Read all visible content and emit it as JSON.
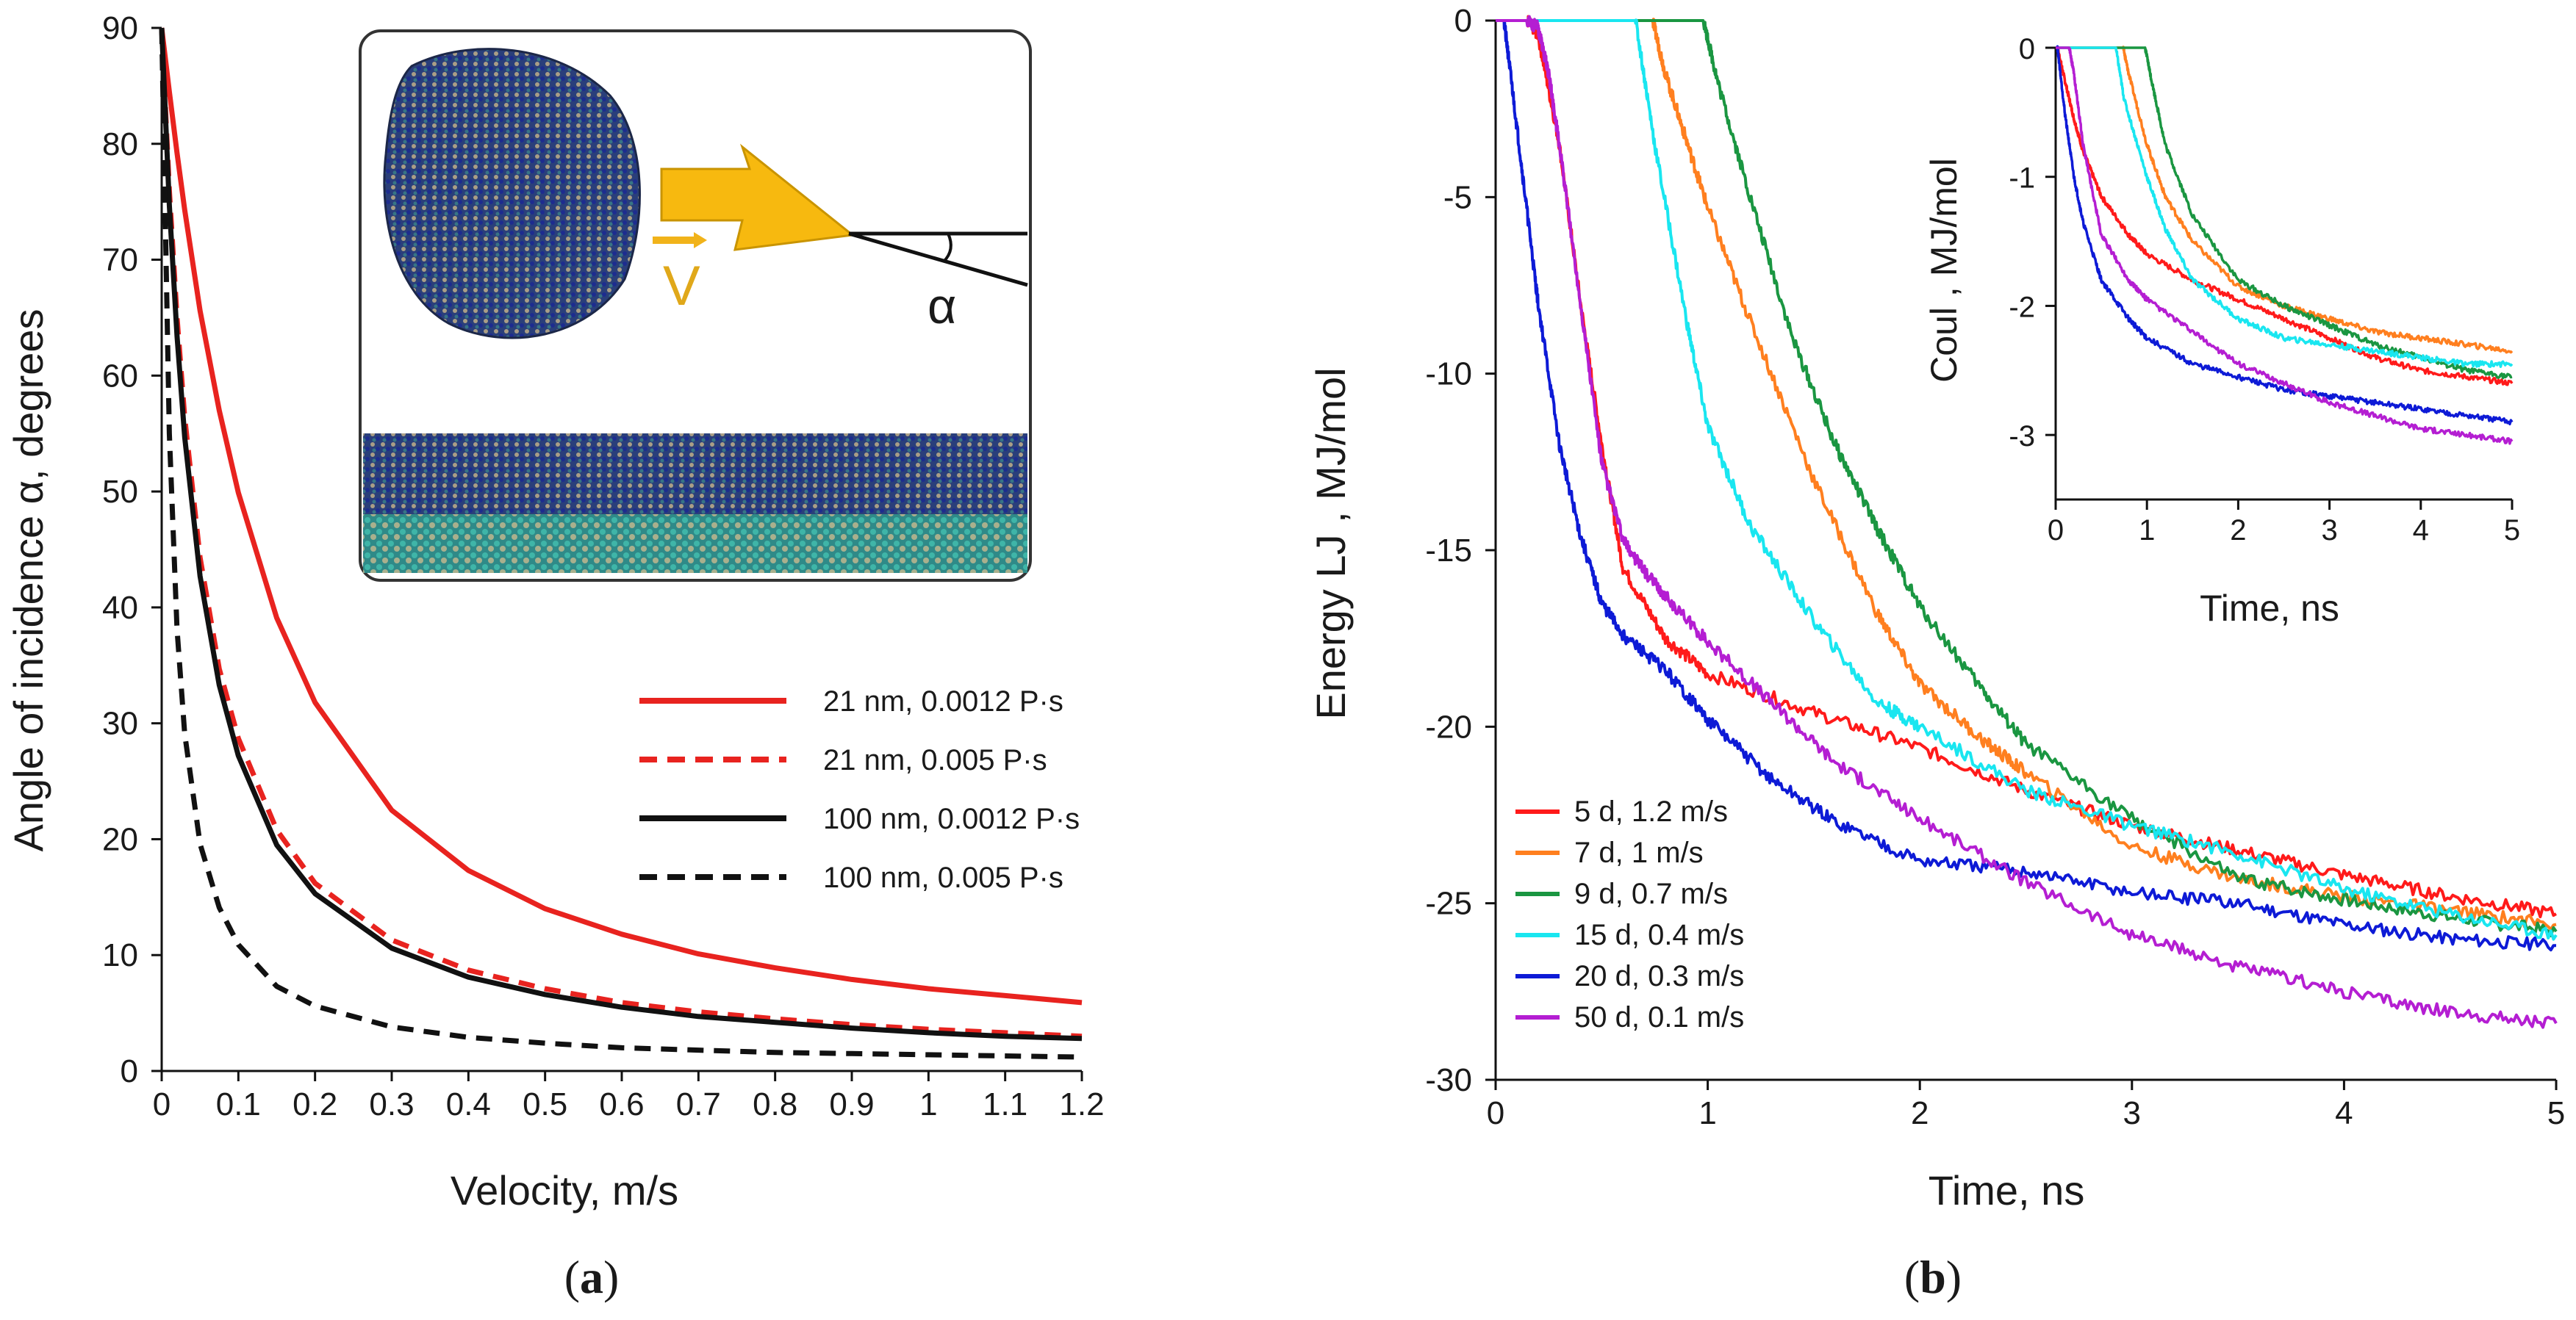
{
  "figure": {
    "panel_a_label": "(a)",
    "panel_a_letter": "a",
    "panel_b_label": "(b)",
    "panel_b_letter": "b",
    "inset_velocity_symbol": "V",
    "inset_angle_symbol": "α"
  },
  "chart_data": [
    {
      "id": "panel-a",
      "type": "line",
      "title": "",
      "xlabel": "Velocity, m/s",
      "ylabel": "Angle of incidence α, degrees",
      "xlim": [
        0,
        1.2
      ],
      "ylim": [
        0,
        90
      ],
      "xticks": [
        "0",
        "0.1",
        "0.2",
        "0.3",
        "0.4",
        "0.5",
        "0.6",
        "0.7",
        "0.8",
        "0.9",
        "1",
        "1.1",
        "1.2"
      ],
      "yticks": [
        "0",
        "10",
        "20",
        "30",
        "40",
        "50",
        "60",
        "70",
        "80",
        "90"
      ],
      "legend_position": "right-center",
      "x": [
        0,
        0.01,
        0.02,
        0.03,
        0.05,
        0.075,
        0.1,
        0.15,
        0.2,
        0.3,
        0.4,
        0.5,
        0.6,
        0.7,
        0.8,
        0.9,
        1.0,
        1.1,
        1.2
      ],
      "series": [
        {
          "name": "21 nm, 0.0012  P·s",
          "color": "#e8231f",
          "dash": "solid",
          "values": [
            90,
            84.5,
            79.2,
            74.3,
            65.6,
            57.0,
            49.9,
            39.1,
            31.8,
            22.5,
            17.3,
            14.0,
            11.8,
            10.1,
            8.9,
            7.9,
            7.1,
            6.5,
            5.9
          ]
        },
        {
          "name": "21 nm, 0.005 P·s",
          "color": "#e8231f",
          "dash": "dashed",
          "values": [
            90,
            76.0,
            65.0,
            56.4,
            44.3,
            34.7,
            28.7,
            20.8,
            16.2,
            11.3,
            8.7,
            7.1,
            5.9,
            5.1,
            4.5,
            4.0,
            3.6,
            3.3,
            3.0
          ]
        },
        {
          "name": "100 nm, 0.0012  P·s",
          "color": "#111111",
          "dash": "solid",
          "values": [
            90,
            74.7,
            63.4,
            54.7,
            42.7,
            33.3,
            27.2,
            19.5,
            15.3,
            10.6,
            8.1,
            6.6,
            5.5,
            4.7,
            4.2,
            3.7,
            3.3,
            3.0,
            2.8
          ]
        },
        {
          "name": "100 nm, 0.005  P·s",
          "color": "#111111",
          "dash": "dashed",
          "values": [
            90,
            55.0,
            38.1,
            29.1,
            19.6,
            14.1,
            10.9,
            7.3,
            5.6,
            3.8,
            2.9,
            2.4,
            2.0,
            1.8,
            1.6,
            1.5,
            1.4,
            1.3,
            1.2
          ]
        }
      ]
    },
    {
      "id": "panel-b",
      "type": "line",
      "title": "",
      "xlabel": "Time, ns",
      "ylabel": "Energy LJ , MJ/mol",
      "xlim": [
        0,
        5
      ],
      "ylim": [
        -30,
        0
      ],
      "xticks": [
        "0",
        "1",
        "2",
        "3",
        "4",
        "5"
      ],
      "yticks": [
        "-30",
        "-25",
        "-20",
        "-15",
        "-10",
        "-5",
        "0"
      ],
      "legend_position": "bottom-left",
      "series": [
        {
          "name": "5 d, 1.2 m/s",
          "color": "#ff1a1a",
          "x": [
            0,
            0.02,
            0.05,
            0.1,
            0.15,
            0.2,
            0.3,
            0.4,
            0.5,
            0.6,
            0.8,
            1.0,
            1.5,
            2.0,
            2.5,
            3.0,
            3.5,
            4.0,
            4.5,
            5.0
          ],
          "values": [
            0,
            0,
            0,
            0,
            0,
            -0.4,
            -3.5,
            -8.0,
            -12.0,
            -15.5,
            -17.5,
            -18.5,
            -19.6,
            -20.6,
            -21.8,
            -22.8,
            -23.5,
            -24.2,
            -24.8,
            -25.3
          ]
        },
        {
          "name": "7 d, 1 m/s",
          "color": "#ff7f1f",
          "x": [
            0,
            0.5,
            0.7,
            0.74,
            0.8,
            0.9,
            1.0,
            1.2,
            1.5,
            1.8,
            2.0,
            2.3,
            2.5,
            3.0,
            3.5,
            4.0,
            4.5,
            5.0
          ],
          "values": [
            0,
            0,
            0,
            0,
            -1.5,
            -3.4,
            -5.3,
            -8.5,
            -13.0,
            -16.8,
            -18.8,
            -20.4,
            -21.3,
            -23.4,
            -24.3,
            -24.8,
            -25.2,
            -25.6
          ]
        },
        {
          "name": "9 d, 0.7 m/s",
          "color": "#1a9641",
          "x": [
            0,
            0.5,
            0.9,
            0.98,
            1.05,
            1.2,
            1.4,
            1.6,
            1.8,
            2.0,
            2.3,
            2.5,
            3.0,
            3.5,
            4.0,
            4.5,
            5.0
          ],
          "values": [
            0,
            0,
            0,
            0,
            -1.8,
            -5.0,
            -9.0,
            -12.0,
            -14.4,
            -16.6,
            -19.0,
            -20.5,
            -22.6,
            -24.3,
            -24.9,
            -25.4,
            -25.8
          ]
        },
        {
          "name": "15 d, 0.4 m/s",
          "color": "#19e6f0",
          "x": [
            0,
            0.4,
            0.6,
            0.66,
            0.75,
            0.9,
            1.0,
            1.2,
            1.5,
            1.8,
            2.0,
            2.5,
            3.0,
            3.5,
            4.0,
            4.5,
            5.0
          ],
          "values": [
            0,
            0,
            0,
            0,
            -3.5,
            -8.5,
            -11.5,
            -14.3,
            -17.0,
            -19.3,
            -20.0,
            -21.8,
            -22.8,
            -23.6,
            -24.6,
            -25.3,
            -25.9
          ]
        },
        {
          "name": "20 d, 0.3 m/s",
          "color": "#0d1ad6",
          "x": [
            0,
            0.02,
            0.04,
            0.08,
            0.15,
            0.2,
            0.3,
            0.4,
            0.5,
            0.6,
            0.8,
            1.0,
            1.3,
            1.6,
            2.0,
            2.5,
            3.0,
            3.5,
            4.0,
            4.5,
            5.0
          ],
          "values": [
            0,
            0,
            0,
            -2.0,
            -5.5,
            -8.0,
            -12.0,
            -14.6,
            -16.5,
            -17.4,
            -18.4,
            -19.8,
            -21.5,
            -22.7,
            -23.8,
            -24.1,
            -24.7,
            -25.0,
            -25.6,
            -26.0,
            -26.2
          ]
        },
        {
          "name": "50 d, 0.1 m/s",
          "color": "#b41ed2",
          "x": [
            0,
            0.15,
            0.2,
            0.25,
            0.3,
            0.4,
            0.5,
            0.6,
            0.7,
            0.8,
            1.0,
            1.3,
            1.6,
            2.0,
            2.5,
            3.0,
            3.5,
            4.0,
            4.5,
            5.0
          ],
          "values": [
            0,
            0,
            -0.2,
            -1.5,
            -3.5,
            -8.0,
            -12.5,
            -14.7,
            -15.6,
            -16.3,
            -17.6,
            -19.3,
            -21.0,
            -22.6,
            -24.4,
            -25.9,
            -26.8,
            -27.5,
            -28.1,
            -28.4
          ]
        }
      ]
    },
    {
      "id": "panel-b-inset",
      "type": "line",
      "title": "",
      "xlabel": "Time, ns",
      "ylabel": "Coul , MJ/mol",
      "xlim": [
        0,
        5
      ],
      "ylim": [
        -3.5,
        0
      ],
      "xticks": [
        "0",
        "1",
        "2",
        "3",
        "4",
        "5"
      ],
      "yticks": [
        "-3",
        "-2",
        "-1",
        "0"
      ],
      "series": [
        {
          "name": "5 d, 1.2 m/s",
          "color": "#ff1a1a",
          "x": [
            0,
            0.02,
            0.1,
            0.2,
            0.3,
            0.5,
            0.8,
            1.0,
            1.5,
            2.0,
            2.5,
            3.0,
            3.5,
            4.0,
            4.5,
            5.0
          ],
          "values": [
            0,
            0,
            -0.25,
            -0.55,
            -0.8,
            -1.15,
            -1.45,
            -1.6,
            -1.8,
            -1.95,
            -2.1,
            -2.25,
            -2.4,
            -2.5,
            -2.55,
            -2.6
          ]
        },
        {
          "name": "7 d, 1 m/s",
          "color": "#ff7f1f",
          "x": [
            0,
            0.6,
            0.74,
            0.8,
            1.0,
            1.2,
            1.5,
            2.0,
            2.5,
            3.0,
            3.5,
            4.0,
            4.5,
            5.0
          ],
          "values": [
            0,
            0,
            0,
            -0.2,
            -0.75,
            -1.15,
            -1.5,
            -1.85,
            -2.0,
            -2.1,
            -2.2,
            -2.25,
            -2.3,
            -2.35
          ]
        },
        {
          "name": "9 d, 0.7 m/s",
          "color": "#1a9641",
          "x": [
            0,
            0.8,
            0.98,
            1.05,
            1.2,
            1.5,
            2.0,
            2.5,
            3.0,
            3.5,
            4.0,
            4.5,
            5.0
          ],
          "values": [
            0,
            0,
            0,
            -0.25,
            -0.75,
            -1.3,
            -1.8,
            -2.0,
            -2.15,
            -2.3,
            -2.4,
            -2.5,
            -2.55
          ]
        },
        {
          "name": "15 d, 0.4 m/s",
          "color": "#19e6f0",
          "x": [
            0,
            0.5,
            0.66,
            0.75,
            1.0,
            1.2,
            1.5,
            2.0,
            2.5,
            3.0,
            3.5,
            4.0,
            4.5,
            5.0
          ],
          "values": [
            0,
            0,
            0,
            -0.4,
            -1.0,
            -1.4,
            -1.8,
            -2.1,
            -2.25,
            -2.3,
            -2.35,
            -2.4,
            -2.45,
            -2.45
          ]
        },
        {
          "name": "20 d, 0.3 m/s",
          "color": "#0d1ad6",
          "x": [
            0,
            0.02,
            0.1,
            0.2,
            0.3,
            0.5,
            0.8,
            1.0,
            1.5,
            2.0,
            2.5,
            3.0,
            3.5,
            4.0,
            4.5,
            5.0
          ],
          "values": [
            0,
            0,
            -0.5,
            -1.0,
            -1.35,
            -1.8,
            -2.1,
            -2.25,
            -2.45,
            -2.55,
            -2.65,
            -2.7,
            -2.75,
            -2.8,
            -2.85,
            -2.9
          ]
        },
        {
          "name": "50 d, 0.1 m/s",
          "color": "#b41ed2",
          "x": [
            0,
            0.15,
            0.2,
            0.3,
            0.5,
            0.8,
            1.0,
            1.5,
            2.0,
            2.5,
            3.0,
            3.5,
            4.0,
            4.5,
            5.0
          ],
          "values": [
            0,
            0,
            -0.2,
            -0.75,
            -1.45,
            -1.8,
            -1.95,
            -2.2,
            -2.45,
            -2.6,
            -2.75,
            -2.85,
            -2.95,
            -3.0,
            -3.05
          ]
        }
      ]
    }
  ]
}
